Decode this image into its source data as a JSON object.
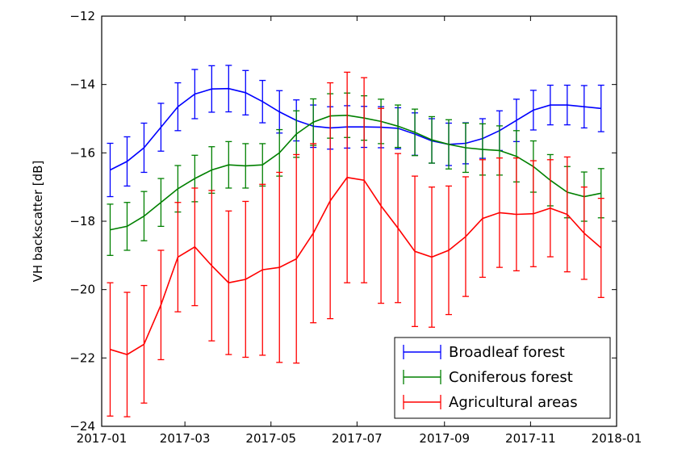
{
  "chart_data": {
    "type": "line",
    "title": "",
    "xlabel": "",
    "ylabel": "VH backscatter [dB]",
    "xlim": [
      "2017-01",
      "2018-01"
    ],
    "ylim": [
      -24,
      -12
    ],
    "x_tick_labels": [
      "2017-01",
      "2017-03",
      "2017-05",
      "2017-07",
      "2017-09",
      "2017-11",
      "2018-01"
    ],
    "y_ticks": [
      -24,
      -22,
      -20,
      -18,
      -16,
      -14,
      -12
    ],
    "y_tick_labels": [
      "−24",
      "−22",
      "−20",
      "−18",
      "−16",
      "−14",
      "−12"
    ],
    "grid": false,
    "legend_position": "lower-right",
    "error_bars": true,
    "x": [
      "2017-01-07",
      "2017-01-19",
      "2017-01-31",
      "2017-02-12",
      "2017-02-24",
      "2017-03-08",
      "2017-03-20",
      "2017-04-01",
      "2017-04-13",
      "2017-04-25",
      "2017-05-07",
      "2017-05-19",
      "2017-05-31",
      "2017-06-12",
      "2017-06-24",
      "2017-07-06",
      "2017-07-18",
      "2017-07-30",
      "2017-08-11",
      "2017-08-23",
      "2017-09-04",
      "2017-09-16",
      "2017-09-28",
      "2017-10-10",
      "2017-10-22",
      "2017-11-03",
      "2017-11-15",
      "2017-11-27",
      "2017-12-09",
      "2017-12-21"
    ],
    "series": [
      {
        "name": "Broadleaf forest",
        "color": "#0000ff",
        "values": [
          -16.5,
          -16.25,
          -15.85,
          -15.25,
          -14.65,
          -14.28,
          -14.13,
          -14.12,
          -14.24,
          -14.5,
          -14.8,
          -15.05,
          -15.22,
          -15.27,
          -15.24,
          -15.24,
          -15.25,
          -15.28,
          -15.45,
          -15.65,
          -15.75,
          -15.72,
          -15.58,
          -15.35,
          -15.05,
          -14.75,
          -14.6,
          -14.6,
          -14.65,
          -14.7
        ],
        "errors": [
          0.78,
          0.72,
          0.72,
          0.7,
          0.7,
          0.72,
          0.68,
          0.68,
          0.65,
          0.62,
          0.62,
          0.6,
          0.62,
          0.62,
          0.62,
          0.6,
          0.6,
          0.6,
          0.62,
          0.65,
          0.62,
          0.6,
          0.58,
          0.58,
          0.62,
          0.58,
          0.58,
          0.58,
          0.62,
          0.68
        ]
      },
      {
        "name": "Coniferous forest",
        "color": "#008000",
        "values": [
          -18.25,
          -18.15,
          -17.85,
          -17.45,
          -17.05,
          -16.75,
          -16.5,
          -16.35,
          -16.38,
          -16.35,
          -16.0,
          -15.45,
          -15.1,
          -14.92,
          -14.9,
          -14.98,
          -15.08,
          -15.22,
          -15.4,
          -15.62,
          -15.75,
          -15.85,
          -15.9,
          -15.93,
          -16.1,
          -16.4,
          -16.8,
          -17.15,
          -17.28,
          -17.18
        ],
        "errors": [
          0.75,
          0.7,
          0.72,
          0.7,
          0.68,
          0.68,
          0.68,
          0.68,
          0.65,
          0.62,
          0.68,
          0.68,
          0.68,
          0.65,
          0.65,
          0.65,
          0.65,
          0.62,
          0.68,
          0.68,
          0.72,
          0.72,
          0.75,
          0.72,
          0.75,
          0.75,
          0.75,
          0.75,
          0.72,
          0.72
        ]
      },
      {
        "name": "Agricultural areas",
        "color": "#ff0000",
        "values": [
          -21.75,
          -21.9,
          -21.6,
          -20.45,
          -19.05,
          -18.75,
          -19.3,
          -19.8,
          -19.7,
          -19.42,
          -19.35,
          -19.1,
          -18.35,
          -17.4,
          -16.72,
          -16.8,
          -17.55,
          -18.2,
          -18.88,
          -19.05,
          -18.85,
          -18.45,
          -17.92,
          -17.75,
          -17.8,
          -17.78,
          -17.62,
          -17.8,
          -18.35,
          -18.78
        ],
        "errors": [
          1.95,
          1.82,
          1.72,
          1.6,
          1.6,
          1.72,
          2.2,
          2.1,
          2.28,
          2.5,
          2.78,
          3.05,
          2.62,
          3.45,
          3.08,
          3.0,
          2.85,
          2.18,
          2.2,
          2.05,
          1.88,
          1.75,
          1.72,
          1.6,
          1.65,
          1.55,
          1.42,
          1.68,
          1.35,
          1.45
        ]
      }
    ]
  }
}
